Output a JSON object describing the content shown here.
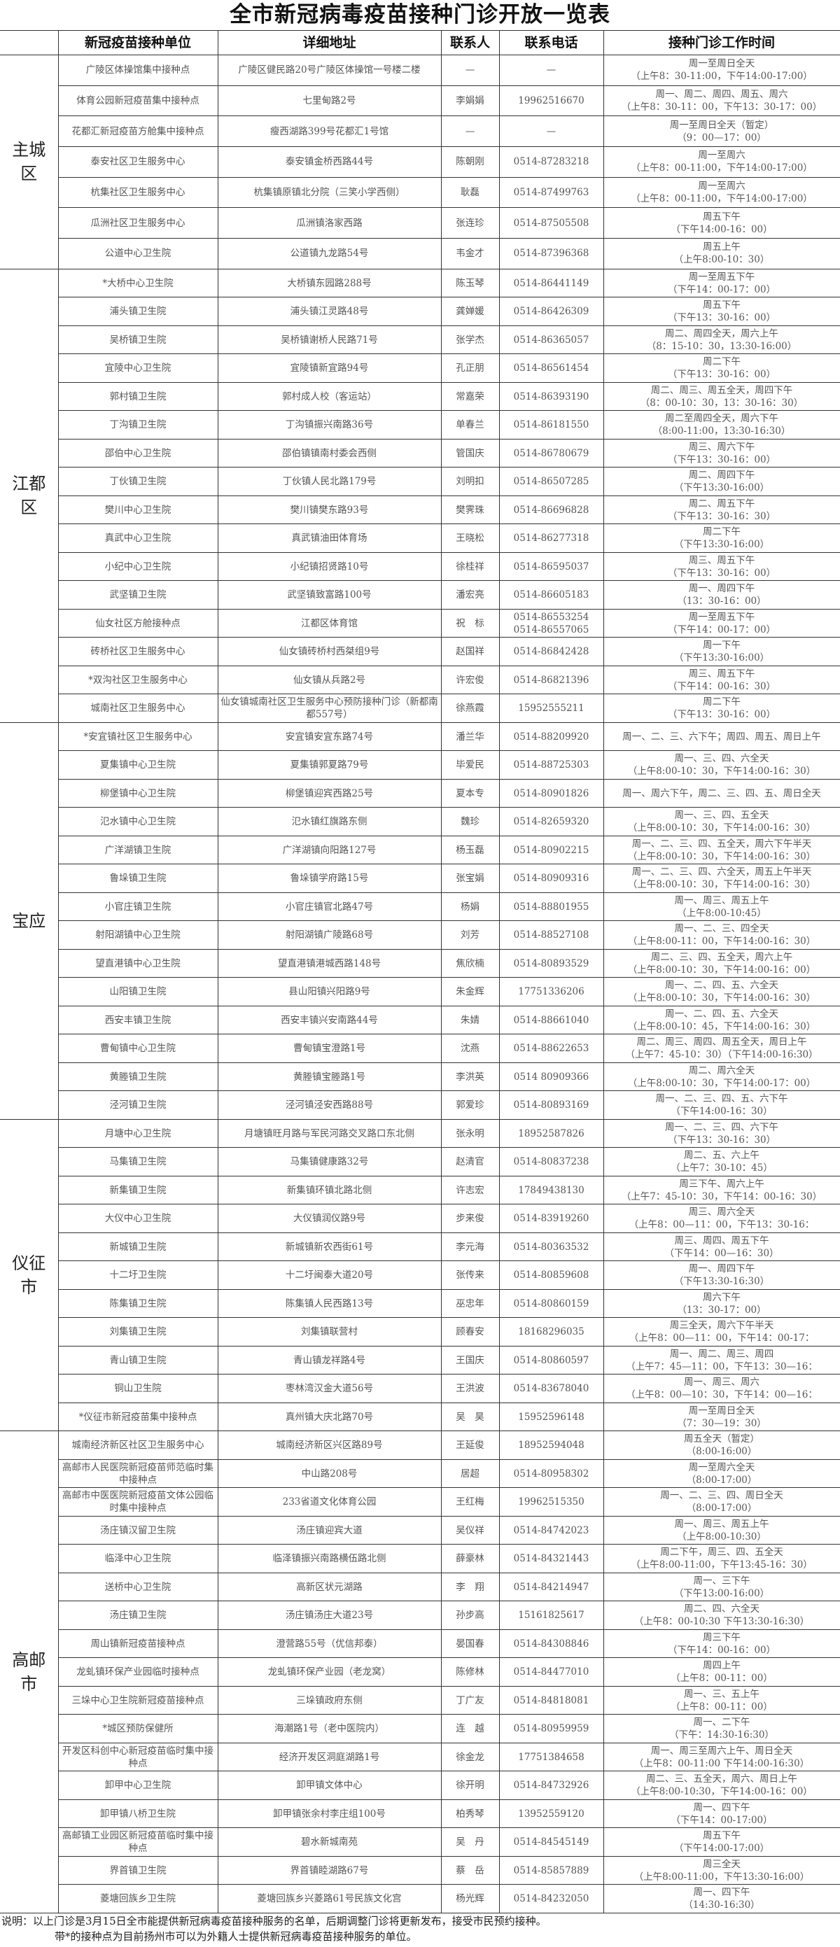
{
  "title": "全市新冠病毒疫苗接种门诊开放一览表",
  "headers": {
    "unit": "新冠疫苗接种单位",
    "address": "详细地址",
    "contact": "联系人",
    "phone": "联系电话",
    "time": "接种门诊工作时间"
  },
  "regions": [
    {
      "label": "主城区",
      "rows": [
        {
          "name": "广陵区体操馆集中接种点",
          "address": "广陵区健民路20号广陵区体操馆一号楼二楼",
          "contact": "—",
          "phones": [
            "—"
          ],
          "time": [
            "周一至周日全天",
            "（上午8：30-11:00，下午14:00-17:00）"
          ]
        },
        {
          "name": "体育公园新冠疫苗集中接种点",
          "address": "七里甸路2号",
          "contact": "李娟娟",
          "phones": [
            "19962516670"
          ],
          "time": [
            "周一、周二、周四、周五、周六",
            "（上午8：30-11：00，下午13：30-17：00）"
          ]
        },
        {
          "name": "花都汇新冠疫苗方舱集中接种点",
          "address": "瘦西湖路399号花都汇1号馆",
          "contact": "—",
          "phones": [
            "—"
          ],
          "time": [
            "周一至周日全天（暂定）",
            "（9：00—17：00）"
          ]
        },
        {
          "name": "泰安社区卫生服务中心",
          "address": "泰安镇金桥西路44号",
          "contact": "陈朝刚",
          "phones": [
            "0514-87283218"
          ],
          "time": [
            "周一至周六",
            "（上午8：00-11:00，下午14:00-17:00）"
          ]
        },
        {
          "name": "杭集社区卫生服务中心",
          "address": "杭集镇原镇北分院（三笑小学西侧）",
          "contact": "耿磊",
          "phones": [
            "0514-87499763"
          ],
          "time": [
            "周一至周六",
            "（上午8：00-11:00，下午14:00-17:00）"
          ]
        },
        {
          "name": "瓜洲社区卫生服务中心",
          "address": "瓜洲镇洛家西路",
          "contact": "张连珍",
          "phones": [
            "0514-87505508"
          ],
          "time": [
            "周五下午",
            "（下午14:00-16：00）"
          ]
        },
        {
          "name": "公道中心卫生院",
          "address": "公道镇九龙路54号",
          "contact": "韦金才",
          "phones": [
            "0514-87396368"
          ],
          "time": [
            "周五上午",
            "（上午8:00-10：30）"
          ]
        }
      ]
    },
    {
      "label": "江都区",
      "rows": [
        {
          "name": "*大桥中心卫生院",
          "address": "大桥镇东园路288号",
          "contact": "陈玉琴",
          "phones": [
            "0514-86441149"
          ],
          "time": [
            "周一至周五下午",
            "（下午14：00-17：00）"
          ]
        },
        {
          "name": "浦头镇卫生院",
          "address": "浦头镇江灵路48号",
          "contact": "龚婵媛",
          "phones": [
            "0514-86426309"
          ],
          "time": [
            "周五下午",
            "（下午13：30-16：00）"
          ]
        },
        {
          "name": "吴桥镇卫生院",
          "address": "吴桥镇谢桥人民路71号",
          "contact": "张学杰",
          "phones": [
            "0514-86365057"
          ],
          "time": [
            "周二、周四全天，周六上午",
            "（8：15-10：30，13:30-16:00）"
          ]
        },
        {
          "name": "宜陵中心卫生院",
          "address": "宜陵镇新宜路94号",
          "contact": "孔正朋",
          "phones": [
            "0514-86561454"
          ],
          "time": [
            "周二下午",
            "（下午13：30-16：00）"
          ]
        },
        {
          "name": "郭村镇卫生院",
          "address": "郭村成人校（客运站）",
          "contact": "常嘉荣",
          "phones": [
            "0514-86393190"
          ],
          "time": [
            "周二、周三、周五全天，周四下午",
            "（8：00-10：30，13：30-16：30）"
          ]
        },
        {
          "name": "丁沟镇卫生院",
          "address": "丁沟镇振兴南路36号",
          "contact": "单春兰",
          "phones": [
            "0514-86181550"
          ],
          "time": [
            "周二至周四全天，周六下午",
            "（8:00-11:00，13:30-16:30）"
          ]
        },
        {
          "name": "邵伯中心卫生院",
          "address": "邵伯镇镇南村委会西侧",
          "contact": "管国庆",
          "phones": [
            "0514-86780679"
          ],
          "time": [
            "周三、周六下午",
            "（下午13：30-16：00）"
          ]
        },
        {
          "name": "丁伙镇卫生院",
          "address": "丁伙镇人民北路179号",
          "contact": "刘明扣",
          "phones": [
            "0514-86507285"
          ],
          "time": [
            "周二、周四下午",
            "（下午13:30-16:00）"
          ]
        },
        {
          "name": "樊川中心卫生院",
          "address": "樊川镇樊东路93号",
          "contact": "樊霁珠",
          "phones": [
            "0514-86696828"
          ],
          "time": [
            "周二、周五下午",
            "（下午13：30-16：30）"
          ]
        },
        {
          "name": "真武中心卫生院",
          "address": "真武镇油田体育场",
          "contact": "王晓松",
          "phones": [
            "0514-86277318"
          ],
          "time": [
            "周二下午",
            "（下午13:30-16:00）"
          ]
        },
        {
          "name": "小纪中心卫生院",
          "address": "小纪镇招贤路10号",
          "contact": "徐桂祥",
          "phones": [
            "0514-86595037"
          ],
          "time": [
            "周三、周五下午",
            "（下午13：30-16：00）"
          ]
        },
        {
          "name": "武坚镇卫生院",
          "address": "武坚镇致富路100号",
          "contact": "潘宏亮",
          "phones": [
            "0514-86605183"
          ],
          "time": [
            "周一、周四下午",
            "（13：30-16：00）"
          ]
        },
        {
          "name": "仙女社区方舱接种点",
          "address": "江都区体育馆",
          "contact": "祝　标",
          "phones": [
            "0514-86553254",
            "0514-86557065"
          ],
          "time": [
            "周一至周五下午",
            "（下午14：00-17：00）"
          ]
        },
        {
          "name": "砖桥社区卫生服务中心",
          "address": "仙女镇砖桥村西桀组9号",
          "contact": "赵国祥",
          "phones": [
            "0514-86842428"
          ],
          "time": [
            "周一下午",
            "（下午13:30-16:00）"
          ]
        },
        {
          "name": "*双沟社区卫生服务中心",
          "address": "仙女镇从兵路2号",
          "contact": "许宏俊",
          "phones": [
            "0514-86821396"
          ],
          "time": [
            "周三、周五下午",
            "（下午14：00-16：30）"
          ]
        },
        {
          "name": "城南社区卫生服务中心",
          "address": "仙女镇城南社区卫生服务中心预防接种门诊（新都南都557号）",
          "contact": "徐燕霞",
          "phones": [
            "15952555211"
          ],
          "time": [
            "周二下午",
            "（下午13：30-16：00）"
          ]
        }
      ]
    },
    {
      "label": "宝应",
      "rows": [
        {
          "name": "*安宜镇社区卫生服务中心",
          "address": "安宜镇安宜东路74号",
          "contact": "潘兰华",
          "phones": [
            "0514-88209920"
          ],
          "time": [
            "周一、二、三、六下午；周四、周五、周日上午"
          ]
        },
        {
          "name": "夏集镇中心卫生院",
          "address": "夏集镇郭夏路79号",
          "contact": "毕爱民",
          "phones": [
            "0514-88725303"
          ],
          "time": [
            "周一、三、四、六全天",
            "（上午8:00-10：30，下午14:00-16：30）"
          ]
        },
        {
          "name": "柳堡镇中心卫生院",
          "address": "柳堡镇迎宾西路25号",
          "contact": "夏本专",
          "phones": [
            "0514-80901826"
          ],
          "time": [
            "周一、周六下午，周二、三、四、五、周日全天"
          ]
        },
        {
          "name": "氾水镇中心卫生院",
          "address": "氾水镇红旗路东侧",
          "contact": "魏珍",
          "phones": [
            "0514-82659320"
          ],
          "time": [
            "周一、三、四、五全天",
            "（上午8:00-10：30，下午14:00-16：30）"
          ]
        },
        {
          "name": "广洋湖镇卫生院",
          "address": "广洋湖镇向阳路127号",
          "contact": "杨玉磊",
          "phones": [
            "0514-80902215"
          ],
          "time": [
            "周一、二、三、四、五全天，周六下午半天",
            "（上午8:00-10：30，下午14:00-16：30）"
          ]
        },
        {
          "name": "鲁垛镇卫生院",
          "address": "鲁垛镇学府路15号",
          "contact": "张宝娟",
          "phones": [
            "0514-80909316"
          ],
          "time": [
            "周一、二、三、四、六全天，周五上午半天",
            "（上午8:00-10：30，下午14:00-16：30）"
          ]
        },
        {
          "name": "小官庄镇卫生院",
          "address": "小官庄镇官北路47号",
          "contact": "杨娟",
          "phones": [
            "0514-88801955"
          ],
          "time": [
            "周一、周三、周五上午",
            "（上午8:00-10:45）"
          ]
        },
        {
          "name": "射阳湖镇中心卫生院",
          "address": "射阳湖镇广陵路68号",
          "contact": "刘芳",
          "phones": [
            "0514-88527108"
          ],
          "time": [
            "周一、二、三、四全天",
            "（上午8:00-11：00，下午14:00-16：30）"
          ]
        },
        {
          "name": "望直港镇中心卫生院",
          "address": "望直港镇港城西路148号",
          "contact": "焦欣楠",
          "phones": [
            "0514-80893529"
          ],
          "time": [
            "周二、三、四、五全天，周六上午",
            "（上午8:00-10：30，下午14:00-16：00）"
          ]
        },
        {
          "name": "山阳镇卫生院",
          "address": "县山阳镇兴阳路9号",
          "contact": "朱金辉",
          "phones": [
            "17751336206"
          ],
          "time": [
            "周一、二、四、五、六全天",
            "（上午8:00-10：30，下午14:00-16：30）"
          ]
        },
        {
          "name": "西安丰镇卫生院",
          "address": "西安丰镇兴安南路44号",
          "contact": "朱婧",
          "phones": [
            "0514-88661040"
          ],
          "time": [
            "周一、二、四、五、六全天",
            "（上午8:00-10：45，下午14:00-16：30）"
          ]
        },
        {
          "name": "曹甸镇中心卫生院",
          "address": "曹甸镇宝澄路1号",
          "contact": "沈燕",
          "phones": [
            "0514-88622653"
          ],
          "time": [
            "周二、周三、周四、周五全天，周日上午",
            "（上午7：45-10：30）（下午14:00-16:30）"
          ]
        },
        {
          "name": "黄塍镇卫生院",
          "address": "黄塍镇宝塍路1号",
          "contact": "李洪英",
          "phones": [
            "0514 80909366"
          ],
          "time": [
            "周二、周六全天",
            "（上午8:00-10：30，下午14:00-17：00）"
          ]
        },
        {
          "name": "泾河镇卫生院",
          "address": "泾河镇泾安西路88号",
          "contact": "郭爱珍",
          "phones": [
            "0514-80893169"
          ],
          "time": [
            "周一、二、三、四、五、六下午",
            "（下午14:00-16：30）"
          ]
        }
      ]
    },
    {
      "label": "仪征市",
      "rows": [
        {
          "name": "月塘中心卫生院",
          "address": "月塘镇旺月路与军民河路交叉路口东北侧",
          "contact": "张永明",
          "phones": [
            "18952587826"
          ],
          "time": [
            "周一、二、三、四、六下午",
            "（下午13：30-16：30）"
          ]
        },
        {
          "name": "马集镇卫生院",
          "address": "马集镇健康路32号",
          "contact": "赵清官",
          "phones": [
            "0514-80837238"
          ],
          "time": [
            "周二、五、六上午",
            "（上午7：30-10：45）"
          ]
        },
        {
          "name": "新集镇卫生院",
          "address": "新集镇环镇北路北侧",
          "contact": "许志宏",
          "phones": [
            "17849438130"
          ],
          "time": [
            "周三下午、周六上午",
            "（上午7：45-10：30，下午14：00-16：30）"
          ]
        },
        {
          "name": "大仪中心卫生院",
          "address": "大仪镇润仪路9号",
          "contact": "步来俊",
          "phones": [
            "0514-83919260"
          ],
          "time": [
            "周三、周六全天",
            "（上午8：00—11：00，下午13：30-16："
          ]
        },
        {
          "name": "新城镇卫生院",
          "address": "新城镇新农西街61号",
          "contact": "李元海",
          "phones": [
            "0514-80363532"
          ],
          "time": [
            "周三、周四、周五下午",
            "（下午14：00—16：30）"
          ]
        },
        {
          "name": "十二圩卫生院",
          "address": "十二圩闽泰大道20号",
          "contact": "张传来",
          "phones": [
            "0514-80859608"
          ],
          "time": [
            "周一、周四下午",
            "（下午13:30-16:30）"
          ]
        },
        {
          "name": "陈集镇卫生院",
          "address": "陈集镇人民西路13号",
          "contact": "巫忠年",
          "phones": [
            "0514-80860159"
          ],
          "time": [
            "周六下午",
            "（13：30-17：00）"
          ]
        },
        {
          "name": "刘集镇卫生院",
          "address": "刘集镇联营村",
          "contact": "顾春安",
          "phones": [
            "18168296035"
          ],
          "time": [
            "周三全天，周六下午半天",
            "（上午8：00—11：00，下午14：00-17："
          ]
        },
        {
          "name": "青山镇卫生院",
          "address": "青山镇龙祥路4号",
          "contact": "王国庆",
          "phones": [
            "0514-80860597"
          ],
          "time": [
            "周一、周二、周三、周四",
            "（上午7：45—11：00，下午13：30—16："
          ]
        },
        {
          "name": "铜山卫生院",
          "address": "枣林湾汉金大道56号",
          "contact": "王洪波",
          "phones": [
            "0514-83678040"
          ],
          "time": [
            "周一、周三、周六",
            "（上午8：00—10：30，下午14：00—16："
          ]
        },
        {
          "name": "*仪征市新冠疫苗集中接种点",
          "address": "真州镇大庆北路70号",
          "contact": "吴　昊",
          "phones": [
            "15952596148"
          ],
          "time": [
            "周一至周日全天",
            "（7：30—19：30）"
          ]
        }
      ]
    },
    {
      "label": "高邮市",
      "rows": [
        {
          "name": "城南经济新区社区卫生服务中心",
          "address": "城南经济新区兴区路89号",
          "contact": "王延俊",
          "phones": [
            "18952594048"
          ],
          "time": [
            "周五全天（暂定）",
            "（8:00-16:00）"
          ]
        },
        {
          "name": "高邮市人民医院新冠疫苗师范临时集中接种点",
          "address": "中山路208号",
          "contact": "居超",
          "phones": [
            "0514-80958302"
          ],
          "time": [
            "周一至周六全天",
            "（8:00-17:00）"
          ]
        },
        {
          "name": "高邮市中医医院新冠疫苗文体公园临时集中接种点",
          "address": "233省道文化体育公园",
          "contact": "王红梅",
          "phones": [
            "19962515350"
          ],
          "time": [
            "周一、二、三、四、周日全天",
            "（8:00-17:00）"
          ]
        },
        {
          "name": "汤庄镇汉留卫生院",
          "address": "汤庄镇迎宾大道",
          "contact": "吴仪祥",
          "phones": [
            "0514-84742023"
          ],
          "time": [
            "周一、周三、周五上午",
            "（上午8:00-10:30）"
          ]
        },
        {
          "name": "临泽中心卫生院",
          "address": "临泽镇振兴南路横伍路北侧",
          "contact": "薛豪林",
          "phones": [
            "0514-84321443"
          ],
          "time": [
            "周二下午，周三、四、五全天",
            "（上午8:00-11:00，下午13:45-16：30）"
          ]
        },
        {
          "name": "送桥中心卫生院",
          "address": "高新区状元湖路",
          "contact": "李　翔",
          "phones": [
            "0514-84214947"
          ],
          "time": [
            "周一、三下午",
            "（下午13:00-16:00）"
          ]
        },
        {
          "name": "汤庄镇卫生院",
          "address": "汤庄镇汤庄大道23号",
          "contact": "孙步高",
          "phones": [
            "15161825617"
          ],
          "time": [
            "周二、四、六全天",
            "（上午8：00-10:30 下午13:30-16:30）"
          ]
        },
        {
          "name": "周山镇新冠疫苗接种点",
          "address": "澄营路55号（优信邦泰）",
          "contact": "晏国春",
          "phones": [
            "0514-84308846"
          ],
          "time": [
            "周三下午",
            "（下午14：00-16：00）"
          ]
        },
        {
          "name": "龙虬镇环保产业园临时接种点",
          "address": "龙虬镇环保产业园（老龙窝）",
          "contact": "陈修林",
          "phones": [
            "0514-84477010"
          ],
          "time": [
            "周四上午",
            "（上午8：00-11：00）"
          ]
        },
        {
          "name": "三垛中心卫生院新冠疫苗接种点",
          "address": "三垛镇政府东侧",
          "contact": "丁广友",
          "phones": [
            "0514-84818081"
          ],
          "time": [
            "周一、三、五上午",
            "（上午8：00-11：00）"
          ]
        },
        {
          "name": "*城区预防保健所",
          "address": "海潮路1号（老中医院内）",
          "contact": "连　越",
          "phones": [
            "0514-80959959"
          ],
          "time": [
            "周一、二下午",
            "（下午：14:30-16:30）"
          ]
        },
        {
          "name": "开发区科创中心新冠疫苗临时集中接种点",
          "address": "经济开发区洞庭湖路1号",
          "contact": "徐金龙",
          "phones": [
            "17751384658"
          ],
          "time": [
            "周一、周三至周六上午、周日全天",
            "（上午8：00-11:00 下午14:00-16:30）"
          ]
        },
        {
          "name": "卸甲中心卫生院",
          "address": "卸甲镇文体中心",
          "contact": "徐开明",
          "phones": [
            "0514-84732926"
          ],
          "time": [
            "周二、三、五全天，周六、周日上午",
            "（上午8:00-10:30，下午14:00-16：00）"
          ]
        },
        {
          "name": "卸甲镇八桥卫生院",
          "address": "卸甲镇张余村李庄组100号",
          "contact": "柏秀琴",
          "phones": [
            "13952559120"
          ],
          "time": [
            "周一、四下午",
            "（下午14：00-17:00）"
          ]
        },
        {
          "name": "高邮镇工业园区新冠疫苗临时集中接种点",
          "address": "碧水新城南苑",
          "contact": "吴　丹",
          "phones": [
            "0514-84545149"
          ],
          "time": [
            "周五下午",
            "（下午14:00-17:00）"
          ]
        },
        {
          "name": "界首镇卫生院",
          "address": "界首镇睦湖路67号",
          "contact": "蔡　岳",
          "phones": [
            "0514-85857889"
          ],
          "time": [
            "周三全天",
            "（上午8:00-11:00，下午13:30-16:00）"
          ]
        },
        {
          "name": "菱塘回族乡卫生院",
          "address": "菱塘回族乡兴菱路61号民族文化宫",
          "contact": "杨光辉",
          "phones": [
            "0514-84232050"
          ],
          "time": [
            "周一、四下午",
            "（14:30-16:30）"
          ]
        }
      ]
    }
  ],
  "notes": [
    "说明：以上门诊是3月15日全市能提供新冠病毒疫苗接种服务的名单，后期调整门诊将更新发布，接受市民预约接种。",
    "带*的接种点为目前扬州市可以为外籍人士提供新冠病毒疫苗接种服务的单位。"
  ]
}
